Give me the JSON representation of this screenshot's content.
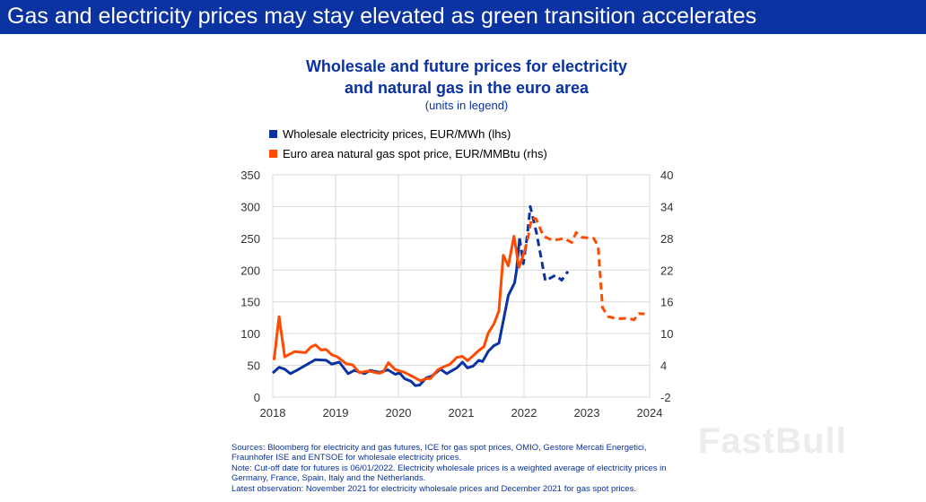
{
  "banner": {
    "title": "Gas and electricity prices may stay elevated as green transition accelerates"
  },
  "colors": {
    "banner": "#0a32a0",
    "electricity": "#0a32a0",
    "gas": "#ff4b00",
    "title": "#0a32a0",
    "grid": "#d9d9d9"
  },
  "watermark": "FastBull",
  "notes": [
    "Sources: Bloomberg for electricity and gas futures, ICE for gas spot prices, OMIO, Gestore Mercati Energetici,",
    "Fraunhofer ISE and ENTSOE for wholesale electricity prices.",
    "Note: Cut-off date for futures is 06/01/2022. Electricity wholesale prices is a weighted average of electricity prices in",
    "Germany, France, Spain, Italy and the Netherlands.",
    "Latest observation: November 2021 for electricity wholesale prices and December 2021 for gas spot prices."
  ],
  "chart_data": {
    "type": "line",
    "title_line1": "Wholesale and future prices for electricity",
    "title_line2": "and natural gas in the euro area",
    "subtitle": "(units in legend)",
    "legend_position": "top-left",
    "grid": true,
    "xlim": [
      2018,
      2024
    ],
    "x_ticks": [
      "2018",
      "2019",
      "2020",
      "2021",
      "2022",
      "2023",
      "2024"
    ],
    "ylim_lhs": [
      0,
      350
    ],
    "y_ticks_lhs": [
      "0",
      "50",
      "100",
      "150",
      "200",
      "250",
      "300",
      "350"
    ],
    "ylim_rhs": [
      -2,
      40
    ],
    "y_ticks_rhs": [
      "-2",
      "4",
      "10",
      "16",
      "22",
      "28",
      "34",
      "40"
    ],
    "series": [
      {
        "name": "Wholesale electricity prices, EUR/MWh (lhs)",
        "axis": "lhs",
        "color": "#0a32a0",
        "actual": [
          [
            2018.0,
            38
          ],
          [
            2018.1,
            47
          ],
          [
            2018.19,
            44
          ],
          [
            2018.28,
            37
          ],
          [
            2018.38,
            42
          ],
          [
            2018.52,
            50
          ],
          [
            2018.68,
            59
          ],
          [
            2018.85,
            58
          ],
          [
            2018.94,
            52
          ],
          [
            2019.06,
            55
          ],
          [
            2019.2,
            37
          ],
          [
            2019.3,
            42
          ],
          [
            2019.46,
            37
          ],
          [
            2019.55,
            42
          ],
          [
            2019.7,
            39
          ],
          [
            2019.83,
            43
          ],
          [
            2019.95,
            36
          ],
          [
            2020.02,
            38
          ],
          [
            2020.1,
            29
          ],
          [
            2020.2,
            25
          ],
          [
            2020.27,
            18
          ],
          [
            2020.34,
            19
          ],
          [
            2020.44,
            30
          ],
          [
            2020.53,
            33
          ],
          [
            2020.67,
            44
          ],
          [
            2020.77,
            37
          ],
          [
            2020.93,
            46
          ],
          [
            2021.02,
            55
          ],
          [
            2021.1,
            46
          ],
          [
            2021.19,
            49
          ],
          [
            2021.28,
            58
          ],
          [
            2021.34,
            56
          ],
          [
            2021.43,
            72
          ],
          [
            2021.52,
            81
          ],
          [
            2021.6,
            85
          ],
          [
            2021.69,
            130
          ],
          [
            2021.75,
            160
          ],
          [
            2021.85,
            180
          ],
          [
            2021.88,
            199
          ],
          [
            2021.93,
            250
          ]
        ],
        "futures": [
          [
            2021.93,
            250
          ],
          [
            2021.99,
            210
          ],
          [
            2022.05,
            253
          ],
          [
            2022.1,
            300
          ],
          [
            2022.2,
            258
          ],
          [
            2022.34,
            183
          ],
          [
            2022.5,
            192
          ],
          [
            2022.6,
            184
          ],
          [
            2022.7,
            198
          ]
        ]
      },
      {
        "name": "Euro area natural gas spot price, EUR/MMBtu (rhs)",
        "axis": "rhs",
        "color": "#ff4b00",
        "actual": [
          [
            2018.02,
            5.0
          ],
          [
            2018.1,
            13.2
          ],
          [
            2018.19,
            5.6
          ],
          [
            2018.35,
            6.6
          ],
          [
            2018.52,
            6.4
          ],
          [
            2018.61,
            7.5
          ],
          [
            2018.68,
            7.85
          ],
          [
            2018.77,
            6.9
          ],
          [
            2018.85,
            7.0
          ],
          [
            2018.94,
            6.0
          ],
          [
            2019.03,
            5.6
          ],
          [
            2019.17,
            4.3
          ],
          [
            2019.27,
            4.1
          ],
          [
            2019.38,
            2.6
          ],
          [
            2019.52,
            2.95
          ],
          [
            2019.69,
            2.5
          ],
          [
            2019.76,
            2.8
          ],
          [
            2019.84,
            4.5
          ],
          [
            2019.95,
            3.2
          ],
          [
            2020.09,
            2.7
          ],
          [
            2020.21,
            2.0
          ],
          [
            2020.35,
            1.1
          ],
          [
            2020.45,
            1.5
          ],
          [
            2020.51,
            1.5
          ],
          [
            2020.63,
            3.2
          ],
          [
            2020.72,
            3.7
          ],
          [
            2020.82,
            4.2
          ],
          [
            2020.93,
            5.5
          ],
          [
            2021.02,
            5.7
          ],
          [
            2021.1,
            4.9
          ],
          [
            2021.17,
            5.6
          ],
          [
            2021.29,
            6.9
          ],
          [
            2021.36,
            7.5
          ],
          [
            2021.43,
            10.1
          ],
          [
            2021.52,
            11.8
          ],
          [
            2021.6,
            14.3
          ],
          [
            2021.67,
            24.8
          ],
          [
            2021.75,
            22.8
          ],
          [
            2021.84,
            28.4
          ],
          [
            2021.92,
            22.5
          ],
          [
            2022.01,
            25.6
          ]
        ],
        "futures": [
          [
            2022.01,
            25.6
          ],
          [
            2022.06,
            27.9
          ],
          [
            2022.12,
            31.8
          ],
          [
            2022.19,
            31.7
          ],
          [
            2022.31,
            28.4
          ],
          [
            2022.46,
            27.6
          ],
          [
            2022.64,
            28.0
          ],
          [
            2022.76,
            27.2
          ],
          [
            2022.83,
            29.1
          ],
          [
            2022.92,
            28.2
          ],
          [
            2023.11,
            28.0
          ],
          [
            2023.18,
            26.5
          ],
          [
            2023.25,
            14.9
          ],
          [
            2023.34,
            13.2
          ],
          [
            2023.48,
            12.8
          ],
          [
            2023.67,
            12.9
          ],
          [
            2023.75,
            12.6
          ],
          [
            2023.83,
            13.8
          ],
          [
            2023.92,
            13.7
          ]
        ]
      }
    ]
  }
}
